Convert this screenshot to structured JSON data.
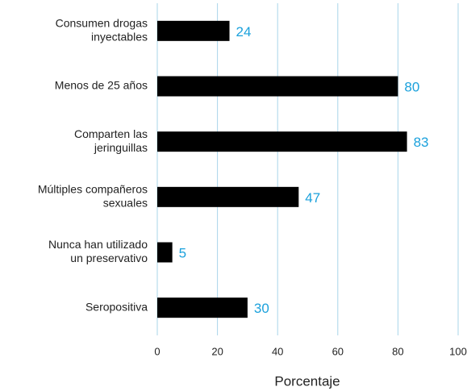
{
  "chart_data": {
    "type": "bar",
    "orientation": "horizontal",
    "categories": [
      [
        "Consumen drogas",
        "inyectables"
      ],
      [
        "Menos de 25 años"
      ],
      [
        "Comparten las",
        "jeringuillas"
      ],
      [
        "Múltiples compañeros",
        "sexuales"
      ],
      [
        "Nunca han utilizado",
        "un preservativo"
      ],
      [
        "Seropositiva"
      ]
    ],
    "values": [
      24,
      80,
      83,
      47,
      5,
      30
    ],
    "color": "#000000",
    "label_color": "#1ba1dc",
    "grid_color": "#a9d5ea",
    "xlim": [
      0,
      100
    ],
    "xticks": [
      0,
      20,
      40,
      60,
      80,
      100
    ],
    "grid": true,
    "xlabel": "Porcentaje"
  }
}
